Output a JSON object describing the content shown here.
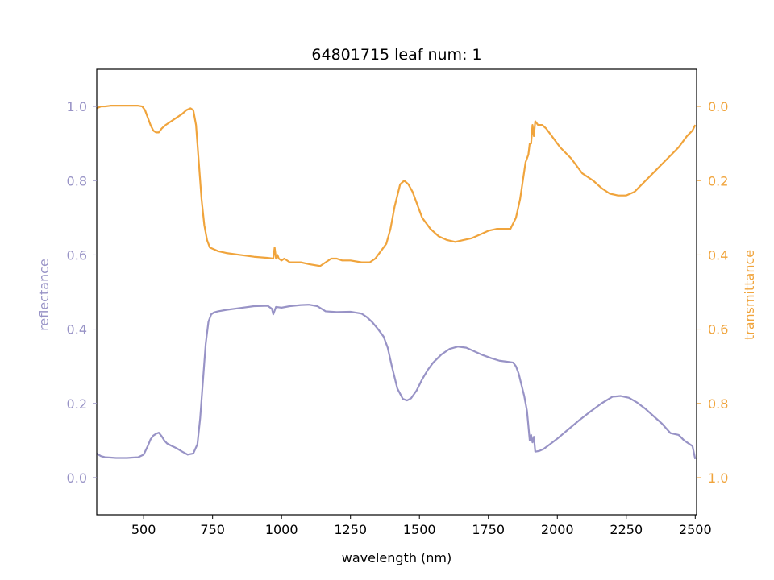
{
  "chart_data": {
    "type": "line",
    "title": "64801715 leaf num: 1",
    "xlabel": "wavelength (nm)",
    "ylabel_left": "reflectance",
    "ylabel_right": "transmittance",
    "xlim": [
      330,
      2505
    ],
    "ylim_left": [
      -0.1,
      1.1
    ],
    "ylim_right": [
      1.1,
      -0.1
    ],
    "right_axis_inverted": true,
    "grid": false,
    "x_ticks": [
      "500",
      "750",
      "1000",
      "1250",
      "1500",
      "1750",
      "2000",
      "2250",
      "2500"
    ],
    "y_ticks_left": [
      "0.0",
      "0.2",
      "0.4",
      "0.6",
      "0.8",
      "1.0"
    ],
    "y_ticks_right": [
      "0.0",
      "0.2",
      "0.4",
      "0.6",
      "0.8",
      "1.0"
    ],
    "colors": {
      "reflectance": "#9893c6",
      "transmittance": "#f0a43c",
      "axis": "#000000"
    },
    "series": [
      {
        "name": "reflectance",
        "axis": "left",
        "color": "#9893c6",
        "x": [
          330,
          345,
          360,
          380,
          400,
          420,
          440,
          460,
          480,
          500,
          515,
          525,
          535,
          545,
          555,
          565,
          575,
          585,
          600,
          620,
          640,
          660,
          680,
          695,
          705,
          715,
          725,
          735,
          745,
          755,
          770,
          800,
          850,
          900,
          950,
          965,
          970,
          975,
          980,
          1000,
          1030,
          1070,
          1100,
          1130,
          1160,
          1200,
          1250,
          1290,
          1310,
          1330,
          1350,
          1370,
          1385,
          1400,
          1420,
          1440,
          1455,
          1470,
          1490,
          1510,
          1530,
          1550,
          1580,
          1610,
          1640,
          1670,
          1700,
          1730,
          1760,
          1790,
          1820,
          1840,
          1850,
          1860,
          1870,
          1880,
          1890,
          1895,
          1900,
          1905,
          1910,
          1915,
          1920,
          1935,
          1950,
          1970,
          2000,
          2040,
          2080,
          2120,
          2160,
          2200,
          2230,
          2260,
          2290,
          2320,
          2350,
          2380,
          2410,
          2440,
          2460,
          2480,
          2490,
          2500
        ],
        "y": [
          0.065,
          0.058,
          0.055,
          0.054,
          0.053,
          0.053,
          0.053,
          0.054,
          0.055,
          0.062,
          0.085,
          0.103,
          0.113,
          0.118,
          0.121,
          0.112,
          0.1,
          0.092,
          0.086,
          0.079,
          0.07,
          0.062,
          0.065,
          0.09,
          0.16,
          0.26,
          0.36,
          0.42,
          0.44,
          0.445,
          0.448,
          0.452,
          0.457,
          0.462,
          0.463,
          0.455,
          0.44,
          0.45,
          0.46,
          0.458,
          0.462,
          0.465,
          0.466,
          0.462,
          0.448,
          0.446,
          0.447,
          0.442,
          0.432,
          0.418,
          0.4,
          0.38,
          0.35,
          0.3,
          0.24,
          0.212,
          0.208,
          0.214,
          0.235,
          0.265,
          0.29,
          0.31,
          0.332,
          0.347,
          0.353,
          0.35,
          0.34,
          0.33,
          0.322,
          0.315,
          0.312,
          0.31,
          0.3,
          0.28,
          0.25,
          0.22,
          0.18,
          0.14,
          0.1,
          0.115,
          0.095,
          0.11,
          0.07,
          0.072,
          0.077,
          0.088,
          0.105,
          0.13,
          0.155,
          0.178,
          0.2,
          0.218,
          0.22,
          0.215,
          0.202,
          0.185,
          0.165,
          0.145,
          0.12,
          0.115,
          0.1,
          0.09,
          0.085,
          0.05
        ],
        "name_visible": false
      },
      {
        "name": "transmittance",
        "axis": "right",
        "color": "#f0a43c",
        "x": [
          330,
          345,
          360,
          380,
          400,
          430,
          460,
          480,
          495,
          505,
          515,
          525,
          535,
          545,
          555,
          565,
          580,
          600,
          620,
          640,
          655,
          670,
          680,
          690,
          700,
          710,
          720,
          730,
          740,
          755,
          770,
          800,
          850,
          900,
          950,
          970,
          975,
          980,
          985,
          990,
          1000,
          1010,
          1030,
          1070,
          1100,
          1140,
          1160,
          1180,
          1200,
          1220,
          1250,
          1290,
          1320,
          1340,
          1360,
          1380,
          1395,
          1410,
          1430,
          1445,
          1460,
          1475,
          1490,
          1510,
          1540,
          1570,
          1600,
          1630,
          1660,
          1690,
          1720,
          1750,
          1780,
          1800,
          1830,
          1850,
          1865,
          1875,
          1885,
          1895,
          1900,
          1905,
          1910,
          1915,
          1920,
          1930,
          1945,
          1960,
          1980,
          2010,
          2050,
          2090,
          2130,
          2160,
          2190,
          2220,
          2250,
          2280,
          2320,
          2360,
          2400,
          2440,
          2470,
          2490,
          2500
        ],
        "y": [
          0.005,
          0.0,
          0.0,
          -0.002,
          -0.002,
          -0.002,
          -0.002,
          -0.002,
          0.0,
          0.01,
          0.03,
          0.05,
          0.065,
          0.07,
          0.07,
          0.06,
          0.05,
          0.04,
          0.03,
          0.02,
          0.01,
          0.005,
          0.01,
          0.05,
          0.15,
          0.25,
          0.32,
          0.36,
          0.38,
          0.385,
          0.39,
          0.395,
          0.4,
          0.405,
          0.408,
          0.41,
          0.38,
          0.41,
          0.4,
          0.41,
          0.415,
          0.41,
          0.42,
          0.42,
          0.425,
          0.43,
          0.42,
          0.41,
          0.41,
          0.415,
          0.415,
          0.42,
          0.42,
          0.41,
          0.39,
          0.37,
          0.33,
          0.27,
          0.21,
          0.2,
          0.21,
          0.23,
          0.26,
          0.3,
          0.33,
          0.35,
          0.36,
          0.365,
          0.36,
          0.355,
          0.345,
          0.335,
          0.33,
          0.33,
          0.33,
          0.3,
          0.25,
          0.2,
          0.15,
          0.13,
          0.1,
          0.1,
          0.05,
          0.08,
          0.04,
          0.05,
          0.05,
          0.06,
          0.08,
          0.11,
          0.14,
          0.18,
          0.2,
          0.22,
          0.235,
          0.24,
          0.24,
          0.23,
          0.2,
          0.17,
          0.14,
          0.11,
          0.08,
          0.065,
          0.05
        ],
        "name_visible": false
      }
    ]
  }
}
